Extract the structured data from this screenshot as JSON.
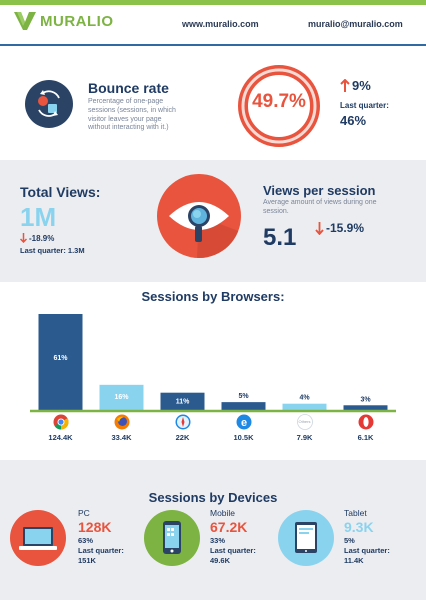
{
  "header": {
    "brand": "MURALIO",
    "website": "www.muralio.com",
    "email": "muralio@muralio.com"
  },
  "bounce": {
    "title": "Bounce rate",
    "description": "Percentage of one-page sessions (sessions, in which visitor leaves your page without interacting with it.)",
    "value": "49.7%",
    "value_fraction": 0.497,
    "change": "9%",
    "change_direction": "up",
    "last_quarter_label": "Last quarter:",
    "last_quarter_value": "46%"
  },
  "views": {
    "total_title": "Total Views:",
    "total_value": "1M",
    "total_change": "-18.9%",
    "total_last_quarter": "Last quarter: 1.3M",
    "per_session_title": "Views per session",
    "per_session_desc": "Average amount of views during one session.",
    "per_session_value": "5.1",
    "per_session_change": "-15.9%"
  },
  "browsers": {
    "title": "Sessions by Browsers:",
    "items": [
      {
        "name": "chrome",
        "count": "124.4K",
        "icon": "chrome-icon"
      },
      {
        "name": "firefox",
        "count": "33.4K",
        "icon": "firefox-icon"
      },
      {
        "name": "safari",
        "count": "22K",
        "icon": "safari-icon"
      },
      {
        "name": "ie",
        "count": "10.5K",
        "icon": "ie-icon"
      },
      {
        "name": "others",
        "count": "7.9K",
        "icon": "others-icon",
        "icon_text": "Others"
      },
      {
        "name": "opera",
        "count": "6.1K",
        "icon": "opera-icon"
      }
    ]
  },
  "devices": {
    "title": "Sessions by Devices",
    "items": [
      {
        "name": "PC",
        "value": "128K",
        "percent": "63%",
        "lq_label": "Last quarter:",
        "lq_value": "151K",
        "icon": "laptop-icon"
      },
      {
        "name": "Mobile",
        "value": "67.2K",
        "percent": "33%",
        "lq_label": "Last quarter:",
        "lq_value": "49.6K",
        "icon": "mobile-icon"
      },
      {
        "name": "Tablet",
        "value": "9.3K",
        "percent": "5%",
        "lq_label": "Last quarter:",
        "lq_value": "11.4K",
        "icon": "tablet-icon"
      }
    ]
  },
  "colors": {
    "accent_red": "#e8543e",
    "navy": "#1f3b63",
    "light_blue": "#8ad3ef",
    "green": "#7cb342"
  },
  "chart_data": {
    "type": "bar",
    "title": "Sessions by Browsers:",
    "categories": [
      "124.4K",
      "33.4K",
      "22K",
      "10.5K",
      "7.9K",
      "6.1K"
    ],
    "values": [
      61,
      16,
      11,
      5,
      4,
      3
    ],
    "value_labels": [
      "61%",
      "16%",
      "11%",
      "5%",
      "4%",
      "3%"
    ],
    "bar_colors": [
      "#2b5a8f",
      "#8ad3ef",
      "#2b5a8f",
      "#2b5a8f",
      "#8ad3ef",
      "#2b5a8f"
    ],
    "ylim": [
      0,
      61
    ]
  }
}
